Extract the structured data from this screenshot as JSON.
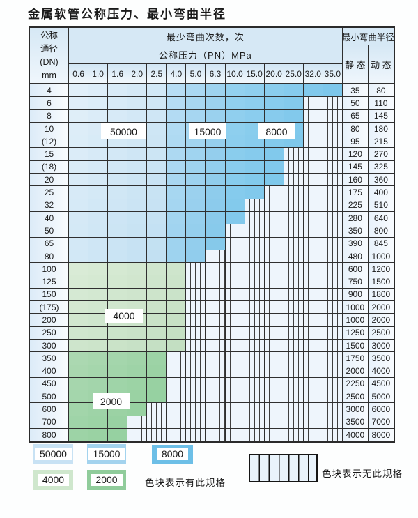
{
  "title": "金属软管公称压力、最小弯曲半径",
  "table": {
    "header": {
      "dn_lines": [
        "公称",
        "通径",
        "(DN)",
        "mm"
      ],
      "cycles": "最少弯曲次数，次",
      "pressure": "公称压力（PN）MPa",
      "pressures": [
        "0.6",
        "1.0",
        "1.6",
        "2.0",
        "2.5",
        "4.0",
        "5.0",
        "6.3",
        "10.0",
        "15.0",
        "20.0",
        "25.0",
        "32.0",
        "35.0"
      ],
      "radius": "最小弯曲半径",
      "static": "静 态",
      "dynamic": "动 态"
    },
    "rows": [
      {
        "dn": "4",
        "band": "blue",
        "colored_through": "35.0",
        "static": "35",
        "dynamic": "80"
      },
      {
        "dn": "6",
        "band": "blue",
        "colored_through": "25.0",
        "static": "50",
        "dynamic": "110"
      },
      {
        "dn": "8",
        "band": "blue",
        "colored_through": "25.0",
        "static": "65",
        "dynamic": "145"
      },
      {
        "dn": "10",
        "band": "blue",
        "colored_through": "25.0",
        "static": "80",
        "dynamic": "180"
      },
      {
        "dn": "(12)",
        "band": "blue",
        "colored_through": "25.0",
        "static": "95",
        "dynamic": "215"
      },
      {
        "dn": "15",
        "band": "blue",
        "colored_through": "20.0",
        "static": "120",
        "dynamic": "270"
      },
      {
        "dn": "(18)",
        "band": "blue",
        "colored_through": "20.0",
        "static": "145",
        "dynamic": "325"
      },
      {
        "dn": "20",
        "band": "blue",
        "colored_through": "20.0",
        "static": "160",
        "dynamic": "360"
      },
      {
        "dn": "25",
        "band": "blue",
        "colored_through": "15.0",
        "static": "175",
        "dynamic": "400"
      },
      {
        "dn": "32",
        "band": "blue",
        "colored_through": "10.0",
        "static": "225",
        "dynamic": "510"
      },
      {
        "dn": "40",
        "band": "blue",
        "colored_through": "10.0",
        "static": "280",
        "dynamic": "640"
      },
      {
        "dn": "50",
        "band": "blue",
        "colored_through": "6.3",
        "static": "350",
        "dynamic": "800"
      },
      {
        "dn": "65",
        "band": "blue",
        "colored_through": "6.3",
        "static": "390",
        "dynamic": "845"
      },
      {
        "dn": "80",
        "band": "blue",
        "colored_through": "5.0",
        "static": "480",
        "dynamic": "1000"
      },
      {
        "dn": "100",
        "band": "4000",
        "colored_through": "4.0",
        "static": "600",
        "dynamic": "1200"
      },
      {
        "dn": "125",
        "band": "4000",
        "colored_through": "4.0",
        "static": "750",
        "dynamic": "1500"
      },
      {
        "dn": "150",
        "band": "4000",
        "colored_through": "4.0",
        "static": "900",
        "dynamic": "1800"
      },
      {
        "dn": "(175)",
        "band": "4000",
        "colored_through": "4.0",
        "static": "1000",
        "dynamic": "2000"
      },
      {
        "dn": "200",
        "band": "4000",
        "colored_through": "4.0",
        "static": "1000",
        "dynamic": "2000"
      },
      {
        "dn": "250",
        "band": "4000",
        "colored_through": "4.0",
        "static": "1250",
        "dynamic": "2500"
      },
      {
        "dn": "300",
        "band": "4000",
        "colored_through": "4.0",
        "static": "1500",
        "dynamic": "3000"
      },
      {
        "dn": "350",
        "band": "2000",
        "colored_through": "2.5",
        "static": "1750",
        "dynamic": "3500"
      },
      {
        "dn": "400",
        "band": "2000",
        "colored_through": "2.5",
        "static": "2000",
        "dynamic": "4000"
      },
      {
        "dn": "450",
        "band": "2000",
        "colored_through": "2.5",
        "static": "2250",
        "dynamic": "4500"
      },
      {
        "dn": "500",
        "band": "2000",
        "colored_through": "2.5",
        "static": "2500",
        "dynamic": "5000"
      },
      {
        "dn": "600",
        "band": "2000",
        "colored_through": "2.0",
        "static": "3000",
        "dynamic": "6000"
      },
      {
        "dn": "700",
        "band": "2000",
        "colored_through": "1.6",
        "static": "3500",
        "dynamic": "7000"
      },
      {
        "dn": "800",
        "band": "2000",
        "colored_through": "1.6",
        "static": "4000",
        "dynamic": "8000"
      }
    ]
  },
  "table_labels": [
    "50000",
    "15000",
    "8000",
    "4000",
    "2000"
  ],
  "legend": {
    "items": [
      {
        "label": "50000",
        "color": "#c8e2f4"
      },
      {
        "label": "15000",
        "color": "#a3d3ee"
      },
      {
        "label": "8000",
        "color": "#6dbfe7"
      },
      {
        "label": "4000",
        "color": "#cfe7cd"
      },
      {
        "label": "2000",
        "color": "#90cc9b"
      }
    ],
    "has_spec_text": "色块表示有此规格",
    "no_spec_text": "色块表示无此规格"
  },
  "colors": {
    "bands": {
      "blue50000": [
        "#e1eff9",
        "#c2e0f2"
      ],
      "blue15000": [
        "#b7ddf4",
        "#84c8ea"
      ],
      "blue8000": [
        "#93d1ef",
        "#66bde7"
      ],
      "green4000": [
        "#d9ebd6",
        "#c3dfc2"
      ],
      "green2000": [
        "#abd8b1",
        "#8fce9b"
      ]
    },
    "stripe_background": "#eef5fc",
    "grid_line": "#2f2f2f"
  }
}
